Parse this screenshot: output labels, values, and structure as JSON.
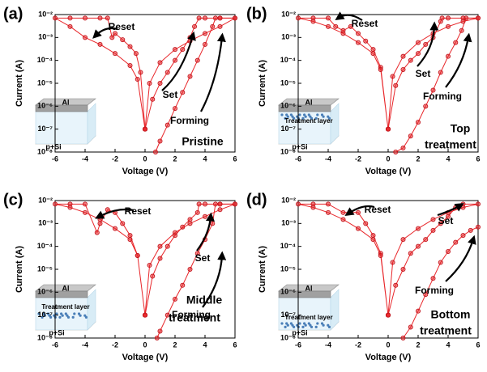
{
  "chart_data": [
    {
      "type": "line",
      "panel_label": "(a)",
      "xlabel": "Voltage (V)",
      "ylabel": "Current (A)",
      "log_y": true,
      "xlim": [
        -6,
        6
      ],
      "xticks": [
        -6,
        -4,
        -2,
        0,
        2,
        4,
        6
      ],
      "ylim": [
        1e-08,
        0.01
      ],
      "yticks": [
        {
          "value": 1e-08,
          "label": "10⁻⁸"
        },
        {
          "value": 1e-07,
          "label": "10⁻⁷"
        },
        {
          "value": 1e-06,
          "label": "10⁻⁶"
        },
        {
          "value": 1e-05,
          "label": "10⁻⁵"
        },
        {
          "value": 0.0001,
          "label": "10⁻⁴"
        },
        {
          "value": 0.001,
          "label": "10⁻³"
        },
        {
          "value": 0.01,
          "label": "10⁻²"
        }
      ],
      "annotations": [
        "Reset",
        "Set",
        "Forming"
      ],
      "caption": [
        "Pristine"
      ],
      "inset": [
        "Al",
        "p+Si"
      ],
      "series": [
        {
          "color": "#e8262a",
          "x": [
            0.7,
            1,
            1.5,
            2,
            2.5,
            3,
            3.5,
            4,
            4.5,
            4.7,
            5,
            6
          ],
          "values": [
            1e-08,
            3e-08,
            1.5e-07,
            8e-07,
            4e-06,
            2e-05,
            0.0001,
            0.0005,
            0.003,
            0.007,
            0.007,
            0.007
          ]
        },
        {
          "color": "#e8262a",
          "x": [
            0,
            0.5,
            1,
            1.5,
            2,
            2.5,
            3,
            3.3,
            3.6,
            4,
            5,
            6,
            5,
            4,
            3,
            2,
            1,
            0.3,
            0
          ],
          "values": [
            1e-07,
            2e-06,
            1e-05,
            3e-05,
            0.0001,
            0.0003,
            0.001,
            0.003,
            0.007,
            0.007,
            0.007,
            0.007,
            0.003,
            0.0015,
            0.0007,
            0.0003,
            8e-05,
            1e-05,
            1e-07
          ]
        },
        {
          "color": "#e8262a",
          "x": [
            0,
            -0.3,
            -0.6,
            -1,
            -1.5,
            -2,
            -2.2,
            -2.5,
            -3,
            -4,
            -5,
            -6,
            -5,
            -4,
            -3,
            -2,
            -1,
            -0.5,
            0
          ],
          "values": [
            1e-07,
            3e-05,
            0.0002,
            0.0004,
            0.0008,
            0.0015,
            0.001,
            0.007,
            0.007,
            0.007,
            0.007,
            0.007,
            0.003,
            0.001,
            0.0005,
            0.0002,
            6e-05,
            1.5e-05,
            1e-07
          ]
        }
      ]
    },
    {
      "type": "line",
      "panel_label": "(b)",
      "xlabel": "Voltage (V)",
      "ylabel": "Current (A)",
      "log_y": true,
      "xlim": [
        -6,
        6
      ],
      "xticks": [
        -6,
        -4,
        -2,
        0,
        2,
        4,
        6
      ],
      "ylim": [
        1e-08,
        0.01
      ],
      "yticks": [
        {
          "value": 1e-08,
          "label": "10⁻⁸"
        },
        {
          "value": 1e-07,
          "label": "10⁻⁷"
        },
        {
          "value": 1e-06,
          "label": "10⁻⁶"
        },
        {
          "value": 1e-05,
          "label": "10⁻⁵"
        },
        {
          "value": 0.0001,
          "label": "10⁻⁴"
        },
        {
          "value": 0.001,
          "label": "10⁻³"
        },
        {
          "value": 0.01,
          "label": "10⁻²"
        }
      ],
      "annotations": [
        "Reset",
        "Set",
        "Forming"
      ],
      "caption": [
        "Top",
        "treatment"
      ],
      "inset": [
        "Al",
        "Treatment layer",
        "p+Si"
      ],
      "series": [
        {
          "color": "#e8262a",
          "x": [
            0.5,
            1,
            1.5,
            2,
            2.5,
            3,
            3.5,
            4,
            4.5,
            4.9,
            5.2,
            6
          ],
          "values": [
            1e-08,
            1.5e-08,
            5e-08,
            2e-07,
            1e-06,
            5e-06,
            3e-05,
            0.00015,
            0.0006,
            0.002,
            0.007,
            0.007
          ]
        },
        {
          "color": "#e8262a",
          "x": [
            0,
            0.5,
            1,
            1.5,
            2,
            2.5,
            3,
            3.5,
            3.6,
            4,
            5,
            6,
            5,
            4,
            3,
            2,
            1,
            0.3,
            0
          ],
          "values": [
            1e-07,
            8e-06,
            4e-05,
            0.0001,
            0.0002,
            0.0005,
            0.001,
            0.005,
            0.007,
            0.007,
            0.007,
            0.007,
            0.005,
            0.003,
            0.0015,
            0.0006,
            0.00015,
            2e-05,
            1e-07
          ]
        },
        {
          "color": "#e8262a",
          "x": [
            0,
            -0.5,
            -1,
            -1.5,
            -2,
            -2.5,
            -3,
            -3.5,
            -4,
            -5,
            -6,
            -5,
            -4,
            -3,
            -2,
            -1,
            -0.5,
            0
          ],
          "values": [
            1e-07,
            5e-05,
            0.0003,
            0.0007,
            0.0015,
            0.003,
            0.002,
            0.003,
            0.007,
            0.007,
            0.007,
            0.005,
            0.003,
            0.0015,
            0.0006,
            0.0002,
            4e-05,
            1e-07
          ]
        }
      ]
    },
    {
      "type": "line",
      "panel_label": "(c)",
      "xlabel": "Voltage (V)",
      "ylabel": "Current (A)",
      "log_y": true,
      "xlim": [
        -6,
        6
      ],
      "xticks": [
        -6,
        -4,
        -2,
        0,
        2,
        4,
        6
      ],
      "ylim": [
        1e-08,
        0.01
      ],
      "yticks": [
        {
          "value": 1e-08,
          "label": "10⁻⁸"
        },
        {
          "value": 1e-07,
          "label": "10⁻⁷"
        },
        {
          "value": 1e-06,
          "label": "10⁻⁶"
        },
        {
          "value": 1e-05,
          "label": "10⁻⁵"
        },
        {
          "value": 0.0001,
          "label": "10⁻⁴"
        },
        {
          "value": 0.001,
          "label": "10⁻³"
        },
        {
          "value": 0.01,
          "label": "10⁻²"
        }
      ],
      "annotations": [
        "Reset",
        "Set",
        "Forming"
      ],
      "caption": [
        "Middle",
        "treatment"
      ],
      "inset": [
        "Al",
        "Treatment layer",
        "p+Si"
      ],
      "series": [
        {
          "color": "#e8262a",
          "x": [
            0.8,
            1,
            1.5,
            2,
            2.5,
            3,
            3.5,
            4,
            4.5,
            4.7,
            5,
            6
          ],
          "values": [
            1e-08,
            2e-08,
            1e-07,
            5e-07,
            2e-06,
            1e-05,
            5e-05,
            0.0002,
            0.001,
            0.007,
            0.007,
            0.007
          ]
        },
        {
          "color": "#e8262a",
          "x": [
            0,
            0.5,
            1,
            1.5,
            2,
            2.5,
            3,
            3.5,
            3.6,
            4,
            5,
            6,
            5,
            4,
            3,
            2,
            1,
            0.3,
            0
          ],
          "values": [
            1e-07,
            5e-06,
            3e-05,
            0.0001,
            0.0003,
            0.0007,
            0.0015,
            0.003,
            0.007,
            0.007,
            0.007,
            0.007,
            0.004,
            0.002,
            0.001,
            0.0004,
            0.0001,
            1.5e-05,
            1e-07
          ]
        },
        {
          "color": "#e8262a",
          "x": [
            0,
            -0.5,
            -1,
            -1.5,
            -2,
            -2.5,
            -3,
            -3.2,
            -4,
            -5,
            -6,
            -5,
            -4,
            -3,
            -2,
            -1,
            -0.5,
            0
          ],
          "values": [
            1e-07,
            4e-05,
            0.0003,
            0.001,
            0.003,
            0.004,
            0.001,
            0.0004,
            0.007,
            0.007,
            0.007,
            0.005,
            0.003,
            0.0015,
            0.0006,
            0.0002,
            4e-05,
            1e-07
          ]
        }
      ]
    },
    {
      "type": "line",
      "panel_label": "(d)",
      "xlabel": "Voltage (V)",
      "ylabel": "Current (A)",
      "log_y": true,
      "xlim": [
        -6,
        6
      ],
      "xticks": [
        -6,
        -4,
        -2,
        0,
        2,
        4,
        6
      ],
      "ylim": [
        1e-08,
        0.01
      ],
      "yticks": [
        {
          "value": 1e-08,
          "label": "10⁻⁸"
        },
        {
          "value": 1e-07,
          "label": "10⁻⁷"
        },
        {
          "value": 1e-06,
          "label": "10⁻⁶"
        },
        {
          "value": 1e-05,
          "label": "10⁻⁵"
        },
        {
          "value": 0.0001,
          "label": "10⁻⁴"
        },
        {
          "value": 0.001,
          "label": "10⁻³"
        },
        {
          "value": 0.01,
          "label": "10⁻²"
        }
      ],
      "annotations": [
        "Reset",
        "Set",
        "Forming"
      ],
      "caption": [
        "Bottom",
        "treatment"
      ],
      "inset": [
        "Al",
        "Treatment layer",
        "p+Si"
      ],
      "series": [
        {
          "color": "#e8262a",
          "x": [
            1,
            1.5,
            2,
            2.5,
            3,
            3.5,
            4,
            4.5,
            5,
            5.5,
            6
          ],
          "values": [
            1e-08,
            3e-08,
            1.5e-07,
            8e-07,
            4e-06,
            2e-05,
            6e-05,
            0.00015,
            0.0003,
            0.0005,
            0.0007
          ]
        },
        {
          "color": "#e8262a",
          "x": [
            0,
            0.5,
            1,
            1.5,
            2,
            2.5,
            3,
            3.5,
            4,
            4.5,
            5,
            6,
            5,
            4,
            3,
            2,
            1,
            0.3,
            0
          ],
          "values": [
            1e-07,
            2e-06,
            1e-05,
            5e-05,
            0.0001,
            0.0002,
            0.0005,
            0.001,
            0.002,
            0.005,
            0.007,
            0.007,
            0.005,
            0.003,
            0.0015,
            0.0006,
            0.0002,
            2e-05,
            1e-07
          ]
        },
        {
          "color": "#e8262a",
          "x": [
            0,
            -0.5,
            -1,
            -1.5,
            -2,
            -2.5,
            -3,
            -4,
            -5,
            -6,
            -5,
            -4,
            -3,
            -2,
            -1,
            -0.5,
            0
          ],
          "values": [
            1e-07,
            5e-05,
            0.0003,
            0.001,
            0.003,
            0.003,
            0.003,
            0.007,
            0.007,
            0.007,
            0.005,
            0.003,
            0.0015,
            0.0006,
            0.0002,
            4e-05,
            1e-07
          ]
        }
      ]
    }
  ]
}
